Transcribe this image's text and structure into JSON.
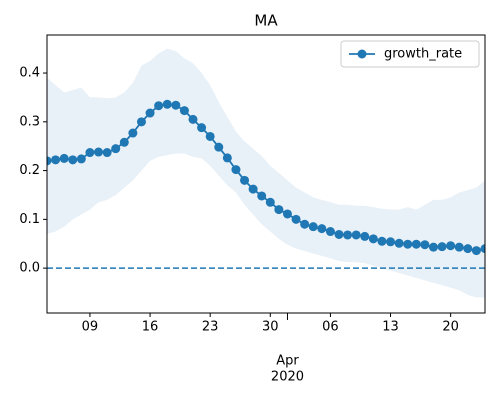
{
  "chart_data": {
    "type": "line",
    "title": "MA",
    "x": [
      "2020-03-04",
      "2020-03-05",
      "2020-03-06",
      "2020-03-07",
      "2020-03-08",
      "2020-03-09",
      "2020-03-10",
      "2020-03-11",
      "2020-03-12",
      "2020-03-13",
      "2020-03-14",
      "2020-03-15",
      "2020-03-16",
      "2020-03-17",
      "2020-03-18",
      "2020-03-19",
      "2020-03-20",
      "2020-03-21",
      "2020-03-22",
      "2020-03-23",
      "2020-03-24",
      "2020-03-25",
      "2020-03-26",
      "2020-03-27",
      "2020-03-28",
      "2020-03-29",
      "2020-03-30",
      "2020-03-31",
      "2020-04-01",
      "2020-04-02",
      "2020-04-03",
      "2020-04-04",
      "2020-04-05",
      "2020-04-06",
      "2020-04-07",
      "2020-04-08",
      "2020-04-09",
      "2020-04-10",
      "2020-04-11",
      "2020-04-12",
      "2020-04-13",
      "2020-04-14",
      "2020-04-15",
      "2020-04-16",
      "2020-04-17",
      "2020-04-18",
      "2020-04-19",
      "2020-04-20",
      "2020-04-21",
      "2020-04-22",
      "2020-04-23",
      "2020-04-24"
    ],
    "series": [
      {
        "name": "growth_rate",
        "color": "#1f77b4",
        "band_color": "#e8f0f8",
        "values": [
          0.22,
          0.222,
          0.225,
          0.222,
          0.224,
          0.237,
          0.238,
          0.237,
          0.245,
          0.258,
          0.277,
          0.3,
          0.318,
          0.333,
          0.336,
          0.334,
          0.323,
          0.305,
          0.288,
          0.27,
          0.248,
          0.226,
          0.202,
          0.18,
          0.162,
          0.148,
          0.135,
          0.12,
          0.111,
          0.1,
          0.09,
          0.085,
          0.081,
          0.075,
          0.069,
          0.068,
          0.068,
          0.065,
          0.06,
          0.055,
          0.054,
          0.051,
          0.049,
          0.049,
          0.048,
          0.043,
          0.044,
          0.046,
          0.043,
          0.04,
          0.036,
          0.04
        ],
        "upper": [
          0.39,
          0.375,
          0.36,
          0.365,
          0.37,
          0.35,
          0.35,
          0.348,
          0.35,
          0.36,
          0.38,
          0.415,
          0.425,
          0.44,
          0.45,
          0.445,
          0.43,
          0.42,
          0.4,
          0.375,
          0.34,
          0.31,
          0.28,
          0.26,
          0.245,
          0.23,
          0.21,
          0.195,
          0.18,
          0.165,
          0.155,
          0.145,
          0.14,
          0.135,
          0.13,
          0.13,
          0.128,
          0.128,
          0.125,
          0.122,
          0.12,
          0.12,
          0.125,
          0.12,
          0.13,
          0.14,
          0.14,
          0.145,
          0.155,
          0.16,
          0.165,
          0.18
        ],
        "lower": [
          0.07,
          0.075,
          0.085,
          0.1,
          0.11,
          0.12,
          0.135,
          0.14,
          0.15,
          0.165,
          0.18,
          0.2,
          0.22,
          0.228,
          0.232,
          0.235,
          0.235,
          0.228,
          0.225,
          0.21,
          0.19,
          0.17,
          0.155,
          0.13,
          0.11,
          0.09,
          0.075,
          0.06,
          0.048,
          0.04,
          0.035,
          0.03,
          0.025,
          0.02,
          0.015,
          0.012,
          0.012,
          0.01,
          0.005,
          0.0,
          -0.005,
          -0.01,
          -0.015,
          -0.02,
          -0.025,
          -0.03,
          -0.035,
          -0.04,
          -0.045,
          -0.055,
          -0.06,
          -0.06
        ]
      }
    ],
    "hline": {
      "value": 0,
      "color": "#1f77b4",
      "style": "dashed"
    },
    "xlim": [
      "2020-03-04",
      "2020-04-24"
    ],
    "xticks": [
      {
        "value": "2020-03-09",
        "label": "09"
      },
      {
        "value": "2020-03-16",
        "label": "16"
      },
      {
        "value": "2020-03-23",
        "label": "23"
      },
      {
        "value": "2020-03-30",
        "label": "30"
      },
      {
        "value": "2020-04-06",
        "label": "06"
      },
      {
        "value": "2020-04-13",
        "label": "13"
      },
      {
        "value": "2020-04-20",
        "label": "20"
      }
    ],
    "month_tick": {
      "value": "2020-04-01",
      "label": "Apr"
    },
    "year_label": "2020",
    "ylim": [
      -0.092,
      0.478
    ],
    "yticks": [
      {
        "value": 0,
        "label": "0.0"
      },
      0.1,
      0.2,
      0.3,
      0.4
    ],
    "legend": "upper right"
  }
}
